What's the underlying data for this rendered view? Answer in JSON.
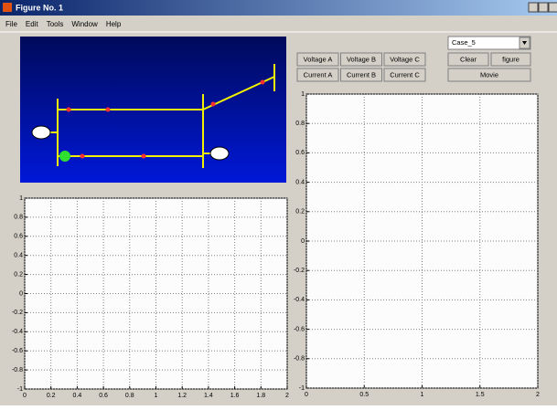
{
  "window": {
    "title": "Figure No. 1"
  },
  "menu": [
    "File",
    "Edit",
    "Tools",
    "Window",
    "Help"
  ],
  "dropdown": "Case_5",
  "buttons": {
    "voltage": [
      "Voltage A",
      "Voltage B",
      "Voltage C"
    ],
    "current": [
      "Current A",
      "Current B",
      "Current C"
    ],
    "clear": "Clear",
    "figure": "figure",
    "movie": "Movie"
  },
  "plots": [
    {
      "xlim": [
        0,
        2
      ],
      "ylim": [
        -1,
        1
      ],
      "xticks": [
        0,
        0.2,
        0.4,
        0.6,
        0.8,
        1,
        1.2,
        1.4,
        1.6,
        1.8,
        2
      ],
      "yticks": [
        -1,
        -0.8,
        -0.6,
        -0.4,
        -0.2,
        0,
        0.2,
        0.4,
        0.6,
        0.8,
        1
      ],
      "grid": true
    },
    {
      "xlim": [
        0,
        2
      ],
      "ylim": [
        -1,
        1
      ],
      "xticks": [
        0,
        0.5,
        1,
        1.5,
        2
      ],
      "yticks": [
        -1,
        -0.8,
        -0.6,
        -0.4,
        -0.2,
        0,
        0.2,
        0.4,
        0.6,
        0.8,
        1
      ],
      "grid": true
    }
  ]
}
